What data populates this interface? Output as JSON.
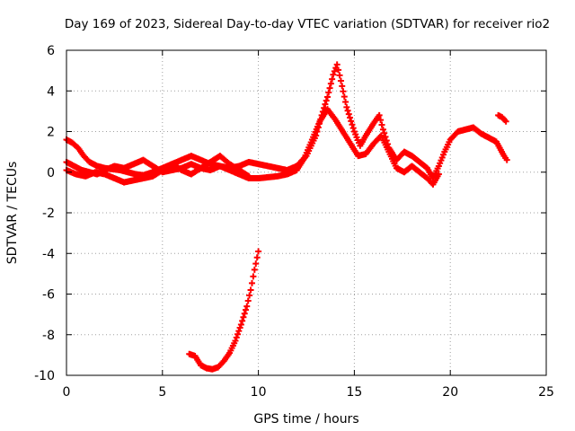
{
  "chart_data": {
    "type": "scatter",
    "title": "Day 169 of 2023, Sidereal Day-to-day VTEC variation (SDTVAR) for receiver rio2",
    "xlabel": "GPS time / hours",
    "ylabel": "SDTVAR / TECUs",
    "xlim": [
      0,
      25
    ],
    "ylim": [
      -10,
      6
    ],
    "xticks": [
      0,
      5,
      10,
      15,
      20,
      25
    ],
    "yticks": [
      -10,
      -8,
      -6,
      -4,
      -2,
      0,
      2,
      4,
      6
    ],
    "grid": true,
    "legend": "none",
    "marker": "plus",
    "series": [
      {
        "name": "track-a",
        "color": "#ff0000",
        "points": [
          [
            0,
            1.6
          ],
          [
            0.3,
            1.45
          ],
          [
            0.6,
            1.2
          ],
          [
            0.9,
            0.8
          ],
          [
            1.2,
            0.5
          ],
          [
            1.6,
            0.3
          ],
          [
            2.0,
            0.2
          ],
          [
            2.4,
            0.15
          ],
          [
            2.8,
            0.1
          ],
          [
            3.2,
            0.0
          ],
          [
            3.6,
            -0.1
          ],
          [
            4.0,
            -0.15
          ],
          [
            4.5,
            0.0
          ],
          [
            5.0,
            0.2
          ],
          [
            5.5,
            0.4
          ],
          [
            6.0,
            0.6
          ],
          [
            6.5,
            0.8
          ],
          [
            7.0,
            0.6
          ],
          [
            7.5,
            0.4
          ],
          [
            8.0,
            0.3
          ],
          [
            8.5,
            0.2
          ],
          [
            9.0,
            0.3
          ],
          [
            9.5,
            0.5
          ],
          [
            10.0,
            0.4
          ],
          [
            10.5,
            0.3
          ],
          [
            11.0,
            0.2
          ],
          [
            11.5,
            0.1
          ],
          [
            12.0,
            0.3
          ],
          [
            12.5,
            0.8
          ],
          [
            13.0,
            1.8
          ],
          [
            13.3,
            2.8
          ],
          [
            13.6,
            3.7
          ],
          [
            13.9,
            4.8
          ],
          [
            14.1,
            5.3
          ],
          [
            14.3,
            4.5
          ],
          [
            14.6,
            3.2
          ],
          [
            15.0,
            2.0
          ],
          [
            15.3,
            1.3
          ],
          [
            15.6,
            1.8
          ],
          [
            16.0,
            2.4
          ],
          [
            16.3,
            2.8
          ],
          [
            16.5,
            2.1
          ],
          [
            16.8,
            1.2
          ],
          [
            17.2,
            0.6
          ],
          [
            17.6,
            1.0
          ],
          [
            18.0,
            0.8
          ],
          [
            18.4,
            0.5
          ],
          [
            18.8,
            0.2
          ],
          [
            19.1,
            -0.3
          ],
          [
            19.4,
            0.3
          ],
          [
            19.7,
            1.0
          ],
          [
            20.0,
            1.6
          ],
          [
            20.4,
            2.0
          ],
          [
            20.8,
            2.1
          ],
          [
            21.2,
            2.2
          ],
          [
            21.6,
            1.9
          ],
          [
            22.0,
            1.7
          ],
          [
            22.4,
            1.5
          ],
          [
            22.8,
            0.8
          ],
          [
            22.95,
            0.6
          ]
        ]
      },
      {
        "name": "track-b",
        "color": "#ff0000",
        "points": [
          [
            0,
            0.5
          ],
          [
            0.4,
            0.3
          ],
          [
            0.8,
            0.1
          ],
          [
            1.2,
            0.0
          ],
          [
            1.6,
            -0.1
          ],
          [
            2.0,
            0.1
          ],
          [
            2.5,
            0.3
          ],
          [
            3.0,
            0.2
          ],
          [
            3.5,
            0.4
          ],
          [
            4.0,
            0.6
          ],
          [
            4.5,
            0.3
          ],
          [
            5.0,
            0.0
          ],
          [
            5.5,
            0.1
          ],
          [
            6.0,
            0.2
          ],
          [
            6.5,
            0.4
          ],
          [
            7.0,
            0.2
          ],
          [
            7.5,
            0.1
          ],
          [
            8.0,
            0.3
          ],
          [
            8.5,
            0.1
          ],
          [
            9.0,
            -0.1
          ],
          [
            9.5,
            -0.3
          ],
          [
            10.0,
            -0.3
          ],
          [
            10.5,
            -0.25
          ],
          [
            11.0,
            -0.2
          ],
          [
            11.5,
            -0.1
          ],
          [
            12.0,
            0.1
          ],
          [
            12.4,
            0.7
          ],
          [
            12.8,
            1.6
          ],
          [
            13.2,
            2.5
          ],
          [
            13.6,
            3.1
          ],
          [
            14.0,
            2.6
          ],
          [
            14.4,
            2.0
          ],
          [
            14.8,
            1.4
          ],
          [
            15.2,
            0.8
          ],
          [
            15.6,
            0.9
          ],
          [
            16.0,
            1.4
          ],
          [
            16.4,
            1.8
          ],
          [
            16.8,
            1.0
          ],
          [
            17.2,
            0.2
          ],
          [
            17.6,
            0.0
          ],
          [
            18.0,
            0.3
          ],
          [
            18.4,
            0.0
          ],
          [
            18.8,
            -0.3
          ],
          [
            19.1,
            -0.6
          ],
          [
            19.4,
            -0.1
          ]
        ]
      },
      {
        "name": "track-c",
        "color": "#ff0000",
        "points": [
          [
            0,
            0.1
          ],
          [
            0.5,
            -0.1
          ],
          [
            1.0,
            -0.2
          ],
          [
            1.5,
            0.0
          ],
          [
            2.0,
            -0.1
          ],
          [
            2.5,
            -0.3
          ],
          [
            3.0,
            -0.5
          ],
          [
            3.5,
            -0.4
          ],
          [
            4.0,
            -0.3
          ],
          [
            4.5,
            -0.2
          ],
          [
            5.0,
            0.1
          ],
          [
            5.5,
            0.4
          ],
          [
            6.0,
            0.1
          ],
          [
            6.5,
            -0.1
          ],
          [
            7.0,
            0.2
          ],
          [
            7.5,
            0.5
          ],
          [
            8.0,
            0.8
          ],
          [
            8.5,
            0.4
          ],
          [
            9.0,
            0.1
          ],
          [
            9.5,
            -0.2
          ]
        ]
      },
      {
        "name": "track-d",
        "color": "#ff0000",
        "points": [
          [
            6.4,
            -8.95
          ],
          [
            6.7,
            -9.05
          ],
          [
            7.0,
            -9.5
          ],
          [
            7.3,
            -9.65
          ],
          [
            7.6,
            -9.7
          ],
          [
            7.9,
            -9.6
          ],
          [
            8.2,
            -9.3
          ],
          [
            8.5,
            -8.9
          ],
          [
            8.8,
            -8.3
          ],
          [
            9.1,
            -7.5
          ],
          [
            9.4,
            -6.6
          ],
          [
            9.6,
            -5.8
          ],
          [
            9.8,
            -4.8
          ],
          [
            10.0,
            -3.9
          ]
        ]
      },
      {
        "name": "track-e",
        "color": "#ff0000",
        "points": [
          [
            22.5,
            2.8
          ],
          [
            22.7,
            2.7
          ],
          [
            22.9,
            2.5
          ]
        ]
      }
    ]
  }
}
